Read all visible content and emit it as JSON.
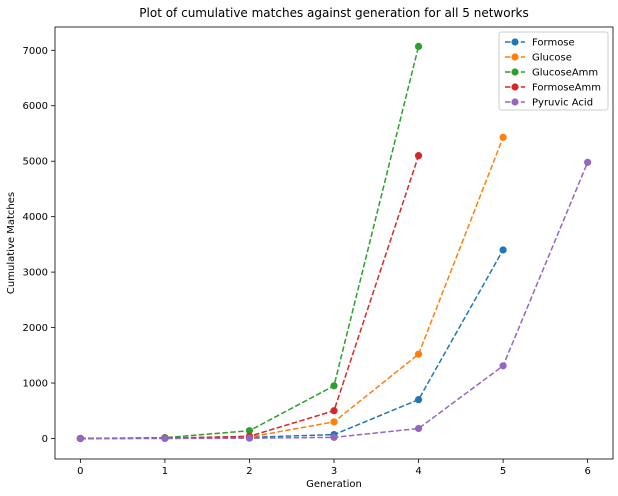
{
  "chart_data": {
    "type": "line",
    "title": "Plot of cumulative matches against generation for all 5 networks",
    "xlabel": "Generation",
    "ylabel": "Cumulative Matches",
    "xlim": [
      -0.3,
      6.3
    ],
    "ylim": [
      -370,
      7420
    ],
    "xticks": [
      0,
      1,
      2,
      3,
      4,
      5,
      6
    ],
    "yticks": [
      0,
      1000,
      2000,
      3000,
      4000,
      5000,
      6000,
      7000
    ],
    "grid": false,
    "legend_position": "top-right",
    "line_style": "dashed",
    "marker": "circle",
    "series": [
      {
        "name": "Formose",
        "color": "#1f77b4",
        "x": [
          0,
          1,
          2,
          3,
          4,
          5
        ],
        "values": [
          0,
          5,
          20,
          70,
          700,
          3400
        ]
      },
      {
        "name": "Glucose",
        "color": "#ff7f0e",
        "x": [
          0,
          1,
          2,
          3,
          4,
          5
        ],
        "values": [
          0,
          5,
          25,
          300,
          1520,
          5430
        ]
      },
      {
        "name": "GlucoseAmm",
        "color": "#2ca02c",
        "x": [
          0,
          1,
          2,
          3,
          4
        ],
        "values": [
          0,
          15,
          140,
          950,
          7070
        ]
      },
      {
        "name": "FormoseAmm",
        "color": "#d62728",
        "x": [
          0,
          1,
          2,
          3,
          4
        ],
        "values": [
          0,
          5,
          40,
          500,
          5100
        ]
      },
      {
        "name": "Pyruvic Acid",
        "color": "#9467bd",
        "x": [
          0,
          1,
          2,
          3,
          4,
          5,
          6
        ],
        "values": [
          0,
          0,
          5,
          20,
          180,
          1310,
          4980
        ]
      }
    ]
  }
}
